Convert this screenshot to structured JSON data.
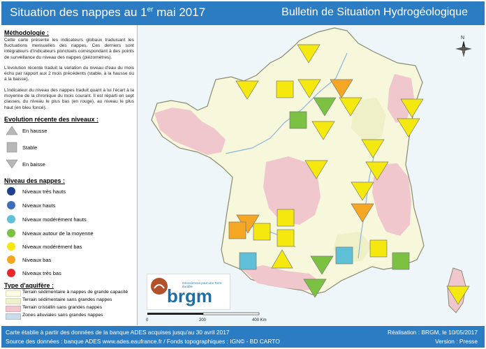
{
  "header": {
    "title_prefix": "Situation des nappes au 1",
    "title_sup": "er",
    "title_suffix": " mai 2017",
    "right_title": "Bulletin de Situation Hydrogéologique"
  },
  "methodology": {
    "title": "Méthodologie :",
    "p1": "Cette carte présente les indicateurs globaux traduisant les fluctuations mensuelles des nappes. Ces derniers sont intégrateurs d'indicateurs ponctuels correspondant à des points de surveillance du niveau des nappes (piézomètres).",
    "p2": "L'évolution récente traduit la variation du niveau d'eau du mois échu par rapport aux 2 mois précédents (stable, à la hausse ou à la baisse).",
    "p3": "L'indicateur du niveau des nappes traduit quant à lui l'écart à la moyenne de la chronique du mois courant. Il est réparti en sept classes, du niveau le plus bas (en rouge), au niveau le plus haut (en bleu foncé)."
  },
  "evolution_legend": {
    "title": "Evolution récente des niveaux :",
    "items": [
      {
        "label": "En hausse",
        "icon": "triangle-up-icon"
      },
      {
        "label": "Stable",
        "icon": "square-icon"
      },
      {
        "label": "En baisse",
        "icon": "triangle-down-icon"
      }
    ]
  },
  "level_legend": {
    "title": "Niveau des nappes :",
    "items": [
      {
        "label": "Niveaux très hauts",
        "color": "#1f3f8f"
      },
      {
        "label": "Niveaux hauts",
        "color": "#3f6fb8"
      },
      {
        "label": "Niveaux modérément hauts",
        "color": "#5fc0d8"
      },
      {
        "label": "Niveaux autour de la moyenne",
        "color": "#7cc242"
      },
      {
        "label": "Niveaux modérément bas",
        "color": "#f5e80e"
      },
      {
        "label": "Niveaux bas",
        "color": "#f5a623"
      },
      {
        "label": "Niveaux très bas",
        "color": "#e8262b"
      }
    ]
  },
  "aquifer_legend": {
    "title": "Type d'aquifère :",
    "items": [
      {
        "label": "Terrain sédimentaire à nappes de grande capacité",
        "color": "#fbfbe6"
      },
      {
        "label": "Terrain sédimentaire sans grandes nappes",
        "color": "#eff0c8"
      },
      {
        "label": "Terrain cristallin sans grandes nappes",
        "color": "#efc7cc"
      },
      {
        "label": "Zones alluviales sans grandes nappes",
        "color": "#c9dcea"
      }
    ]
  },
  "map": {
    "north_label": "N",
    "scale_labels": [
      "0",
      "200",
      "400 Km"
    ],
    "logo_name": "brgm",
    "logo_tagline": "Géosciences pour une Terre durable",
    "symbols": [
      {
        "shape": "down",
        "level_color": "#f5e80e"
      },
      {
        "shape": "down",
        "level_color": "#f5e80e"
      },
      {
        "shape": "square",
        "level_color": "#f5e80e"
      },
      {
        "shape": "down",
        "level_color": "#f5e80e"
      },
      {
        "shape": "down",
        "level_color": "#f5a623"
      },
      {
        "shape": "down",
        "level_color": "#7cc242"
      },
      {
        "shape": "down",
        "level_color": "#f5e80e"
      },
      {
        "shape": "down",
        "level_color": "#f5e80e"
      },
      {
        "shape": "square",
        "level_color": "#7cc242"
      },
      {
        "shape": "down",
        "level_color": "#f5e80e"
      },
      {
        "shape": "down",
        "level_color": "#f5e80e"
      },
      {
        "shape": "down",
        "level_color": "#f5e80e"
      },
      {
        "shape": "down",
        "level_color": "#f5e80e"
      },
      {
        "shape": "down",
        "level_color": "#f5e80e"
      },
      {
        "shape": "down",
        "level_color": "#f5e80e"
      },
      {
        "shape": "down",
        "level_color": "#f5a623"
      },
      {
        "shape": "down",
        "level_color": "#f5a623"
      },
      {
        "shape": "square",
        "level_color": "#f5e80e"
      },
      {
        "shape": "square",
        "level_color": "#f5a623"
      },
      {
        "shape": "square",
        "level_color": "#f5e80e"
      },
      {
        "shape": "square",
        "level_color": "#f5e80e"
      },
      {
        "shape": "up",
        "level_color": "#f5e80e"
      },
      {
        "shape": "square",
        "level_color": "#5fc0d8"
      },
      {
        "shape": "square",
        "level_color": "#5fc0d8"
      },
      {
        "shape": "square",
        "level_color": "#f5e80e"
      },
      {
        "shape": "down",
        "level_color": "#7cc242"
      },
      {
        "shape": "down",
        "level_color": "#7cc242"
      },
      {
        "shape": "square",
        "level_color": "#7cc242"
      },
      {
        "shape": "down",
        "level_color": "#f5e80e"
      }
    ]
  },
  "footer": {
    "line1": "Carte établie à partir des données de la banque ADES acquises jusqu'au 30 avril 2017",
    "line2": "Source des données : banque ADES www.ades.eaufrance.fr / Fonds topographiques : IGN© - BD CARTO",
    "right1": "Réalisation : BRGM, le 10/05/2017",
    "right2": "Version : Presse"
  }
}
